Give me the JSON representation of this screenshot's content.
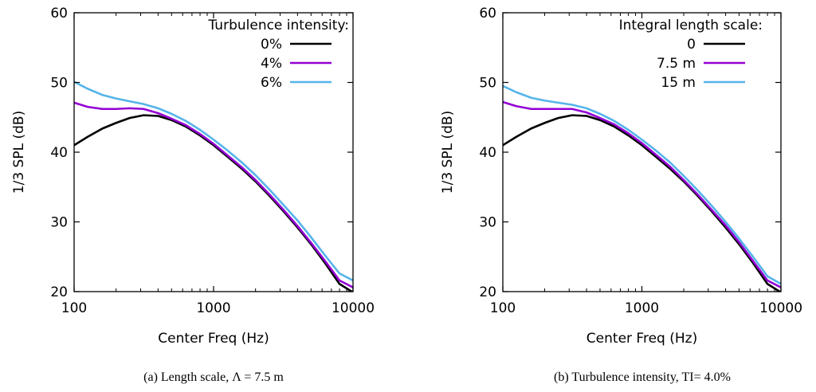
{
  "chart_data": [
    {
      "type": "line",
      "caption": "(a) Length scale, Λ = 7.5 m",
      "xlabel": "Center Freq (Hz)",
      "ylabel": "1/3 SPL (dB)",
      "xscale": "log",
      "xlim": [
        100,
        10000
      ],
      "ylim": [
        20,
        60
      ],
      "xticks": [
        "100",
        "1000",
        "10000"
      ],
      "yticks": [
        "20",
        "30",
        "40",
        "50",
        "60"
      ],
      "legend_title": "Turbulence intensity:",
      "legend_position": "top-right",
      "x": [
        100,
        125,
        160,
        200,
        250,
        315,
        400,
        500,
        630,
        800,
        1000,
        1250,
        1600,
        2000,
        2500,
        3150,
        4000,
        5000,
        6300,
        8000,
        10000
      ],
      "series": [
        {
          "name": "0%",
          "color": "#000000",
          "values": [
            41.0,
            42.2,
            43.4,
            44.2,
            44.9,
            45.3,
            45.2,
            44.6,
            43.7,
            42.4,
            41.0,
            39.4,
            37.6,
            35.8,
            33.8,
            31.6,
            29.2,
            26.8,
            24.1,
            21.1,
            19.9
          ]
        },
        {
          "name": "4%",
          "color": "#9400D3",
          "values": [
            47.1,
            46.5,
            46.2,
            46.2,
            46.3,
            46.2,
            45.6,
            44.8,
            43.9,
            42.6,
            41.2,
            39.6,
            37.8,
            36.0,
            34.0,
            31.8,
            29.4,
            27.0,
            24.4,
            21.6,
            20.6
          ]
        },
        {
          "name": "6%",
          "color": "#56B4E9",
          "values": [
            50.1,
            49.1,
            48.2,
            47.7,
            47.3,
            46.9,
            46.3,
            45.5,
            44.5,
            43.2,
            41.8,
            40.3,
            38.5,
            36.7,
            34.7,
            32.5,
            30.2,
            27.8,
            25.2,
            22.6,
            21.6
          ]
        }
      ]
    },
    {
      "type": "line",
      "caption": "(b) Turbulence intensity, TI= 4.0%",
      "xlabel": "Center Freq (Hz)",
      "ylabel": "1/3 SPL (dB)",
      "xscale": "log",
      "xlim": [
        100,
        10000
      ],
      "ylim": [
        20,
        60
      ],
      "xticks": [
        "100",
        "1000",
        "10000"
      ],
      "yticks": [
        "20",
        "30",
        "40",
        "50",
        "60"
      ],
      "legend_title": "Integral length scale:",
      "legend_position": "top-right",
      "x": [
        100,
        125,
        160,
        200,
        250,
        315,
        400,
        500,
        630,
        800,
        1000,
        1250,
        1600,
        2000,
        2500,
        3150,
        4000,
        5000,
        6300,
        8000,
        10000
      ],
      "series": [
        {
          "name": "0",
          "color": "#000000",
          "values": [
            41.0,
            42.2,
            43.4,
            44.2,
            44.9,
            45.3,
            45.2,
            44.6,
            43.7,
            42.4,
            41.0,
            39.4,
            37.6,
            35.8,
            33.8,
            31.6,
            29.2,
            26.8,
            24.1,
            21.1,
            19.9
          ]
        },
        {
          "name": "7.5 m",
          "color": "#9400D3",
          "values": [
            47.2,
            46.6,
            46.2,
            46.2,
            46.2,
            46.2,
            45.7,
            44.9,
            44.0,
            42.7,
            41.3,
            39.7,
            37.9,
            36.0,
            34.0,
            31.8,
            29.5,
            27.1,
            24.4,
            21.6,
            20.6
          ]
        },
        {
          "name": "15 m",
          "color": "#56B4E9",
          "values": [
            49.5,
            48.6,
            47.8,
            47.4,
            47.1,
            46.8,
            46.3,
            45.5,
            44.5,
            43.2,
            41.8,
            40.3,
            38.5,
            36.6,
            34.6,
            32.4,
            30.0,
            27.6,
            25.0,
            22.2,
            21.1
          ]
        }
      ]
    }
  ]
}
